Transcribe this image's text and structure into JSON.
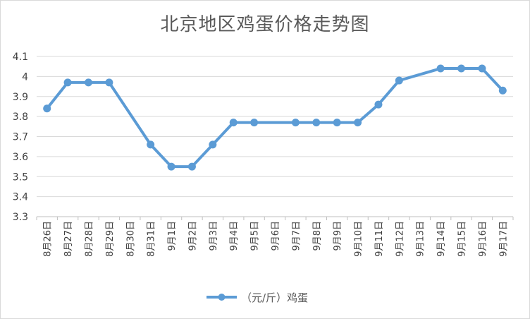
{
  "chart_data": {
    "type": "line",
    "title": "北京地区鸡蛋价格走势图",
    "categories": [
      "8月26日",
      "8月27日",
      "8月28日",
      "8月29日",
      "8月30日",
      "8月31日",
      "9月1日",
      "9月2日",
      "9月3日",
      "9月4日",
      "9月5日",
      "9月6日",
      "9月7日",
      "9月8日",
      "9月9日",
      "9月10日",
      "9月11日",
      "9月12日",
      "9月13日",
      "9月14日",
      "9月15日",
      "9月16日",
      "9月17日"
    ],
    "series": [
      {
        "name": "（元/斤）鸡蛋",
        "points": [
          {
            "category": "8月26日",
            "value": 3.84
          },
          {
            "category": "8月27日",
            "value": 3.97
          },
          {
            "category": "8月28日",
            "value": 3.97
          },
          {
            "category": "8月29日",
            "value": 3.97
          },
          {
            "category": "8月31日",
            "value": 3.66
          },
          {
            "category": "9月1日",
            "value": 3.55
          },
          {
            "category": "9月2日",
            "value": 3.55
          },
          {
            "category": "9月3日",
            "value": 3.66
          },
          {
            "category": "9月4日",
            "value": 3.77
          },
          {
            "category": "9月5日",
            "value": 3.77
          },
          {
            "category": "9月7日",
            "value": 3.77
          },
          {
            "category": "9月8日",
            "value": 3.77
          },
          {
            "category": "9月9日",
            "value": 3.77
          },
          {
            "category": "9月10日",
            "value": 3.77
          },
          {
            "category": "9月11日",
            "value": 3.86
          },
          {
            "category": "9月12日",
            "value": 3.98
          },
          {
            "category": "9月14日",
            "value": 4.04
          },
          {
            "category": "9月15日",
            "value": 4.04
          },
          {
            "category": "9月16日",
            "value": 4.04
          },
          {
            "category": "9月17日",
            "value": 3.93
          }
        ]
      }
    ],
    "ylim": [
      3.3,
      4.1
    ],
    "yticks": [
      "3.3",
      "3.4",
      "3.5",
      "3.6",
      "3.7",
      "3.8",
      "3.9",
      "4",
      "4.1"
    ],
    "grid": true,
    "legend_position": "bottom",
    "color": "#5B9BD5"
  }
}
